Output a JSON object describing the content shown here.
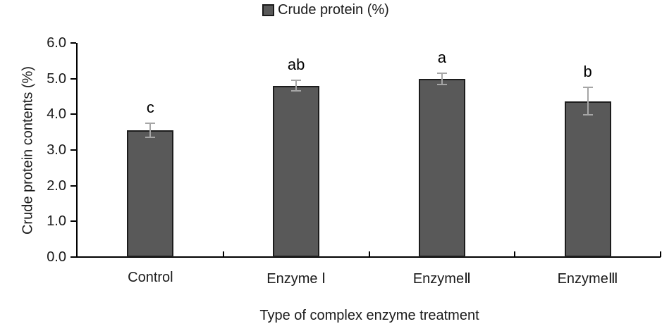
{
  "legend": {
    "label": "Crude protein (%)",
    "swatch_color": "#595959"
  },
  "axes": {
    "y_title": "Crude protein contents (%)",
    "x_title": "Type of complex enzyme treatment"
  },
  "chart_data": {
    "type": "bar",
    "title": "Crude protein (%)",
    "xlabel": "Type of complex enzyme treatment",
    "ylabel": "Crude protein contents (%)",
    "categories": [
      "Control",
      "Enzyme Ⅰ",
      "EnzymeⅡ",
      "EnzymeⅢ"
    ],
    "series": [
      {
        "name": "Crude protein (%)",
        "values": [
          3.55,
          4.8,
          5.0,
          4.37
        ],
        "errors": [
          0.2,
          0.15,
          0.16,
          0.38
        ],
        "sig_letters": [
          "c",
          "ab",
          "a",
          "b"
        ]
      }
    ],
    "ylim": [
      0,
      6
    ],
    "ytick_step": 1.0,
    "ytick_labels": [
      "0.0",
      "1.0",
      "2.0",
      "3.0",
      "4.0",
      "5.0",
      "6.0"
    ],
    "grid": false,
    "legend_position": "top-center",
    "bar_color": "#595959",
    "bar_border_color": "#1c1c1c",
    "error_bar_color": "#a6a6a6"
  }
}
